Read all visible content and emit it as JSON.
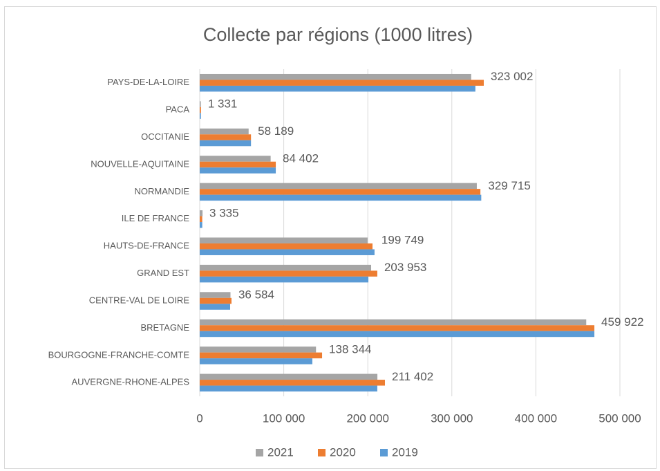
{
  "chart_data": {
    "type": "bar",
    "orientation": "horizontal",
    "title": "Collecte par régions (1000 litres)",
    "categories": [
      "AUVERGNE-RHONE-ALPES",
      "BOURGOGNE-FRANCHE-COMTE",
      "BRETAGNE",
      "CENTRE-VAL DE LOIRE",
      "GRAND EST",
      "HAUTS-DE-FRANCE",
      "ILE DE FRANCE",
      "NORMANDIE",
      "NOUVELLE-AQUITAINE",
      "OCCITANIE",
      "PACA",
      "PAYS-DE-LA-LOIRE"
    ],
    "series": [
      {
        "name": "2021",
        "color": "#a5a5a5",
        "values": [
          211402,
          138344,
          459922,
          36584,
          203953,
          199749,
          3335,
          329715,
          84402,
          58189,
          1331,
          323002
        ],
        "value_labels": [
          "211 402",
          "138 344",
          "459 922",
          "36 584",
          "203 953",
          "199 749",
          "3 335",
          "329 715",
          "84 402",
          "58 189",
          "1 331",
          "323 002"
        ]
      },
      {
        "name": "2020",
        "color": "#ed7d31",
        "values": [
          220400,
          145600,
          469600,
          37800,
          211300,
          205600,
          3000,
          334000,
          90500,
          61000,
          1500,
          338000
        ]
      },
      {
        "name": "2019",
        "color": "#5b9bd5",
        "values": [
          211300,
          134000,
          469600,
          36200,
          200700,
          208000,
          3000,
          335000,
          90500,
          61000,
          1400,
          328000
        ]
      }
    ],
    "xlim": [
      0,
      500000
    ],
    "xticks": [
      0,
      {
        "value": 100000,
        "label": "100 000"
      },
      {
        "value": 200000,
        "label": "200 000"
      },
      {
        "value": 300000,
        "label": "300 000"
      },
      {
        "value": 400000,
        "label": "400 000"
      },
      {
        "value": 500000,
        "label": "500 000"
      }
    ],
    "grid": true,
    "legend": "bottom"
  }
}
